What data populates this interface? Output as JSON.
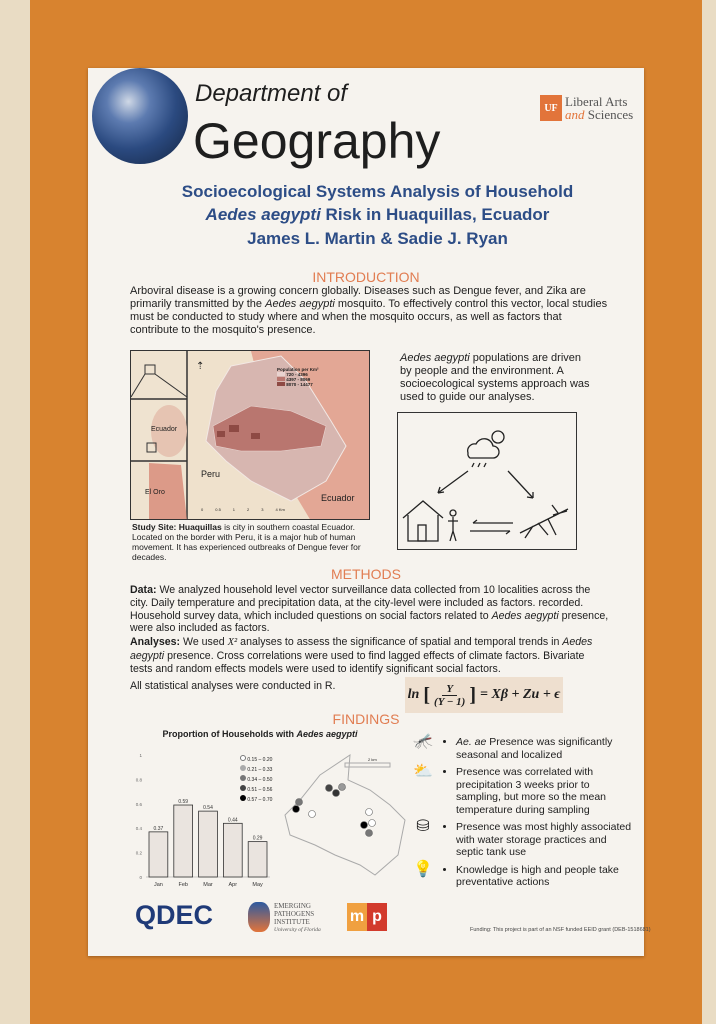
{
  "header": {
    "dept_line": "Department of",
    "dept_name": "Geography",
    "uf_mark": "UF",
    "uf_line1": "Liberal Arts",
    "uf_line2_italic": "and",
    "uf_line2": "Sciences"
  },
  "title": {
    "line1": "Socioecological Systems Analysis of Household",
    "line2_italic": "Aedes aegypti",
    "line2_rest": " Risk in Huaquillas, Ecuador",
    "authors": "James L. Martin & Sadie J. Ryan"
  },
  "intro": {
    "heading": "INTRODUCTION",
    "p1": "Arboviral disease is a growing concern globally. Diseases such as Dengue fever, and Zika are primarily transmitted by the ",
    "p1_it": "Aedes aegypti",
    "p1_b": " mosquito. To effectively control this vector, local studies must be conducted to study where and when the mosquito occurs, as well as factors that contribute to the mosquito's presence.",
    "right_it": "Aedes aegypti",
    "right_rest": " populations are driven by people and the environment. A socioecological systems approach was used to guide our analyses.",
    "map": {
      "legend_title": "Population per Km²",
      "legend": [
        "720 - 4396",
        "4397 - 8069",
        "8070 - 14477"
      ],
      "labels": {
        "ecuador_inset": "Ecuador",
        "el_oro": "El Oro",
        "peru": "Peru",
        "ecuador": "Ecuador"
      },
      "scale": [
        "0",
        "0.5",
        "1",
        "2",
        "3",
        "4 Km"
      ]
    },
    "caption_bold": "Study Site: Huaquillas",
    "caption": " is city in southern coastal Ecuador. Located on the border with Peru, it is a major hub of human movement. It has experienced outbreaks of Dengue fever for decades."
  },
  "methods": {
    "heading": "METHODS",
    "data_label": "Data:",
    "data_text": " We analyzed household level vector surveillance data collected from 10 localities across the city. Daily temperature and precipitation data, at the city-level were included as factors. recorded. Household survey data, which included questions on social factors related to ",
    "data_it": "Aedes aegypti",
    "data_end": " presence, were also included as factors.",
    "an_label": "Analyses:",
    "an_a": " We used ",
    "an_chi": "X²",
    "an_b": " analyses to assess the significance of spatial and temporal trends in ",
    "an_it": "Aedes aegypti",
    "an_c": " presence. Cross correlations were used to find lagged effects of climate factors. Bivariate tests and random effects models were used to identify significant social factors.",
    "r_note": "All statistical analyses were conducted in R.",
    "eq": {
      "ln": "ln",
      "num": "Y",
      "den": "(Y − 1)",
      "rhs": "= Xβ + Zu + ϵ"
    }
  },
  "findings": {
    "heading": "FINDINGS",
    "chart_title": "Proportion of Households with ",
    "chart_title_it": "Aedes aegypti",
    "dot_legend": [
      "0.15 – 0.20",
      "0.21 – 0.33",
      "0.34 – 0.50",
      "0.51 – 0.56",
      "0.57 – 0.70"
    ],
    "scale_label": "2 km",
    "items": [
      {
        "icon": "mosquito-icon",
        "it": "Ae. ae",
        "text": " Presence was significantly seasonal and localized"
      },
      {
        "icon": "weather-icon",
        "it": "",
        "text": "Presence was correlated with precipitation 3 weeks prior to sampling, but more so the mean temperature during sampling"
      },
      {
        "icon": "water-tank-icon",
        "it": "",
        "text": "Presence was most highly associated with water storage practices and septic tank use"
      },
      {
        "icon": "lightbulb-icon",
        "it": "",
        "text": "Knowledge is high and people take preventative actions"
      }
    ]
  },
  "footer": {
    "qdec": "QDEC",
    "epi": [
      "EMERGING",
      "PATHOGENS",
      "INSTITUTE",
      "University of Florida"
    ],
    "msp_m": "m",
    "msp_p": "p",
    "funding": "Funding: This project is part of an NSF funded EEID grant (DEB-1518681)"
  },
  "chart_data": {
    "type": "bar",
    "title": "Proportion of Households with Aedes aegypti",
    "categories": [
      "Jan",
      "Feb",
      "Mar",
      "Apr",
      "May"
    ],
    "values": [
      0.37,
      0.59,
      0.54,
      0.44,
      0.29
    ],
    "ylim": [
      0,
      1
    ],
    "yticks": [
      "0",
      "0.2",
      "0.4",
      "0.6",
      "0.8",
      "1"
    ],
    "xlabel": "",
    "ylabel": ""
  },
  "colors": {
    "orange_board": "#d8832f",
    "title_blue": "#2d4d86",
    "section_orange": "#e17d52"
  }
}
